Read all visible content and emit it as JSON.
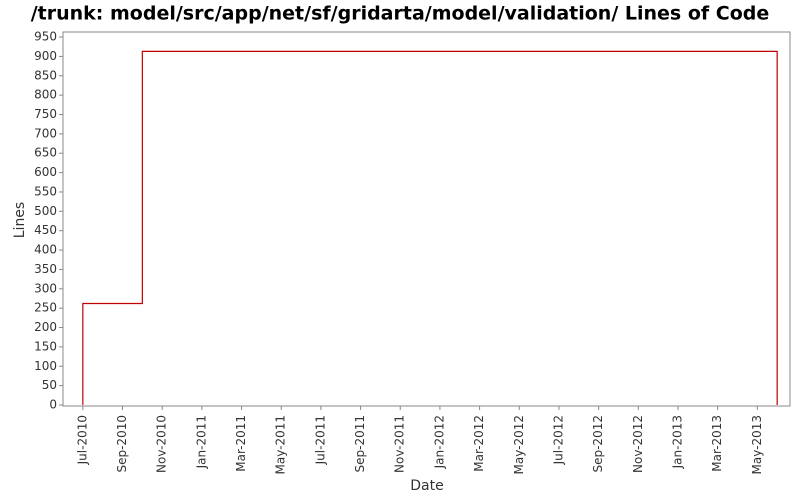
{
  "chart_data": {
    "type": "step-line",
    "title": "/trunk: model/src/app/net/sf/gridarta/model/validation/ Lines of Code",
    "x_label": "Date",
    "y_label": "Lines",
    "series": [
      {
        "name": "Lines",
        "color": "#c00000",
        "x": [
          "2010-07",
          "2010-07",
          "2010-10",
          "2013-06"
        ],
        "values": [
          0,
          262,
          913,
          0
        ]
      }
    ],
    "xlim": [
      "2010-06",
      "2013-07"
    ],
    "xticks": [
      {
        "value": "2010-07",
        "label": "Jul-2010"
      },
      {
        "value": "2010-09",
        "label": "Sep-2010"
      },
      {
        "value": "2010-11",
        "label": "Nov-2010"
      },
      {
        "value": "2011-01",
        "label": "Jan-2011"
      },
      {
        "value": "2011-03",
        "label": "Mar-2011"
      },
      {
        "value": "2011-05",
        "label": "May-2011"
      },
      {
        "value": "2011-07",
        "label": "Jul-2011"
      },
      {
        "value": "2011-09",
        "label": "Sep-2011"
      },
      {
        "value": "2011-11",
        "label": "Nov-2011"
      },
      {
        "value": "2012-01",
        "label": "Jan-2012"
      },
      {
        "value": "2012-03",
        "label": "Mar-2012"
      },
      {
        "value": "2012-05",
        "label": "May-2012"
      },
      {
        "value": "2012-07",
        "label": "Jul-2012"
      },
      {
        "value": "2012-09",
        "label": "Sep-2012"
      },
      {
        "value": "2012-11",
        "label": "Nov-2012"
      },
      {
        "value": "2013-01",
        "label": "Jan-2013"
      },
      {
        "value": "2013-03",
        "label": "Mar-2013"
      },
      {
        "value": "2013-05",
        "label": "May-2013"
      }
    ],
    "ylim": [
      0,
      963
    ],
    "yticks": [
      0,
      50,
      100,
      150,
      200,
      250,
      300,
      350,
      400,
      450,
      500,
      550,
      600,
      650,
      700,
      750,
      800,
      850,
      900,
      950
    ],
    "grid": false
  }
}
